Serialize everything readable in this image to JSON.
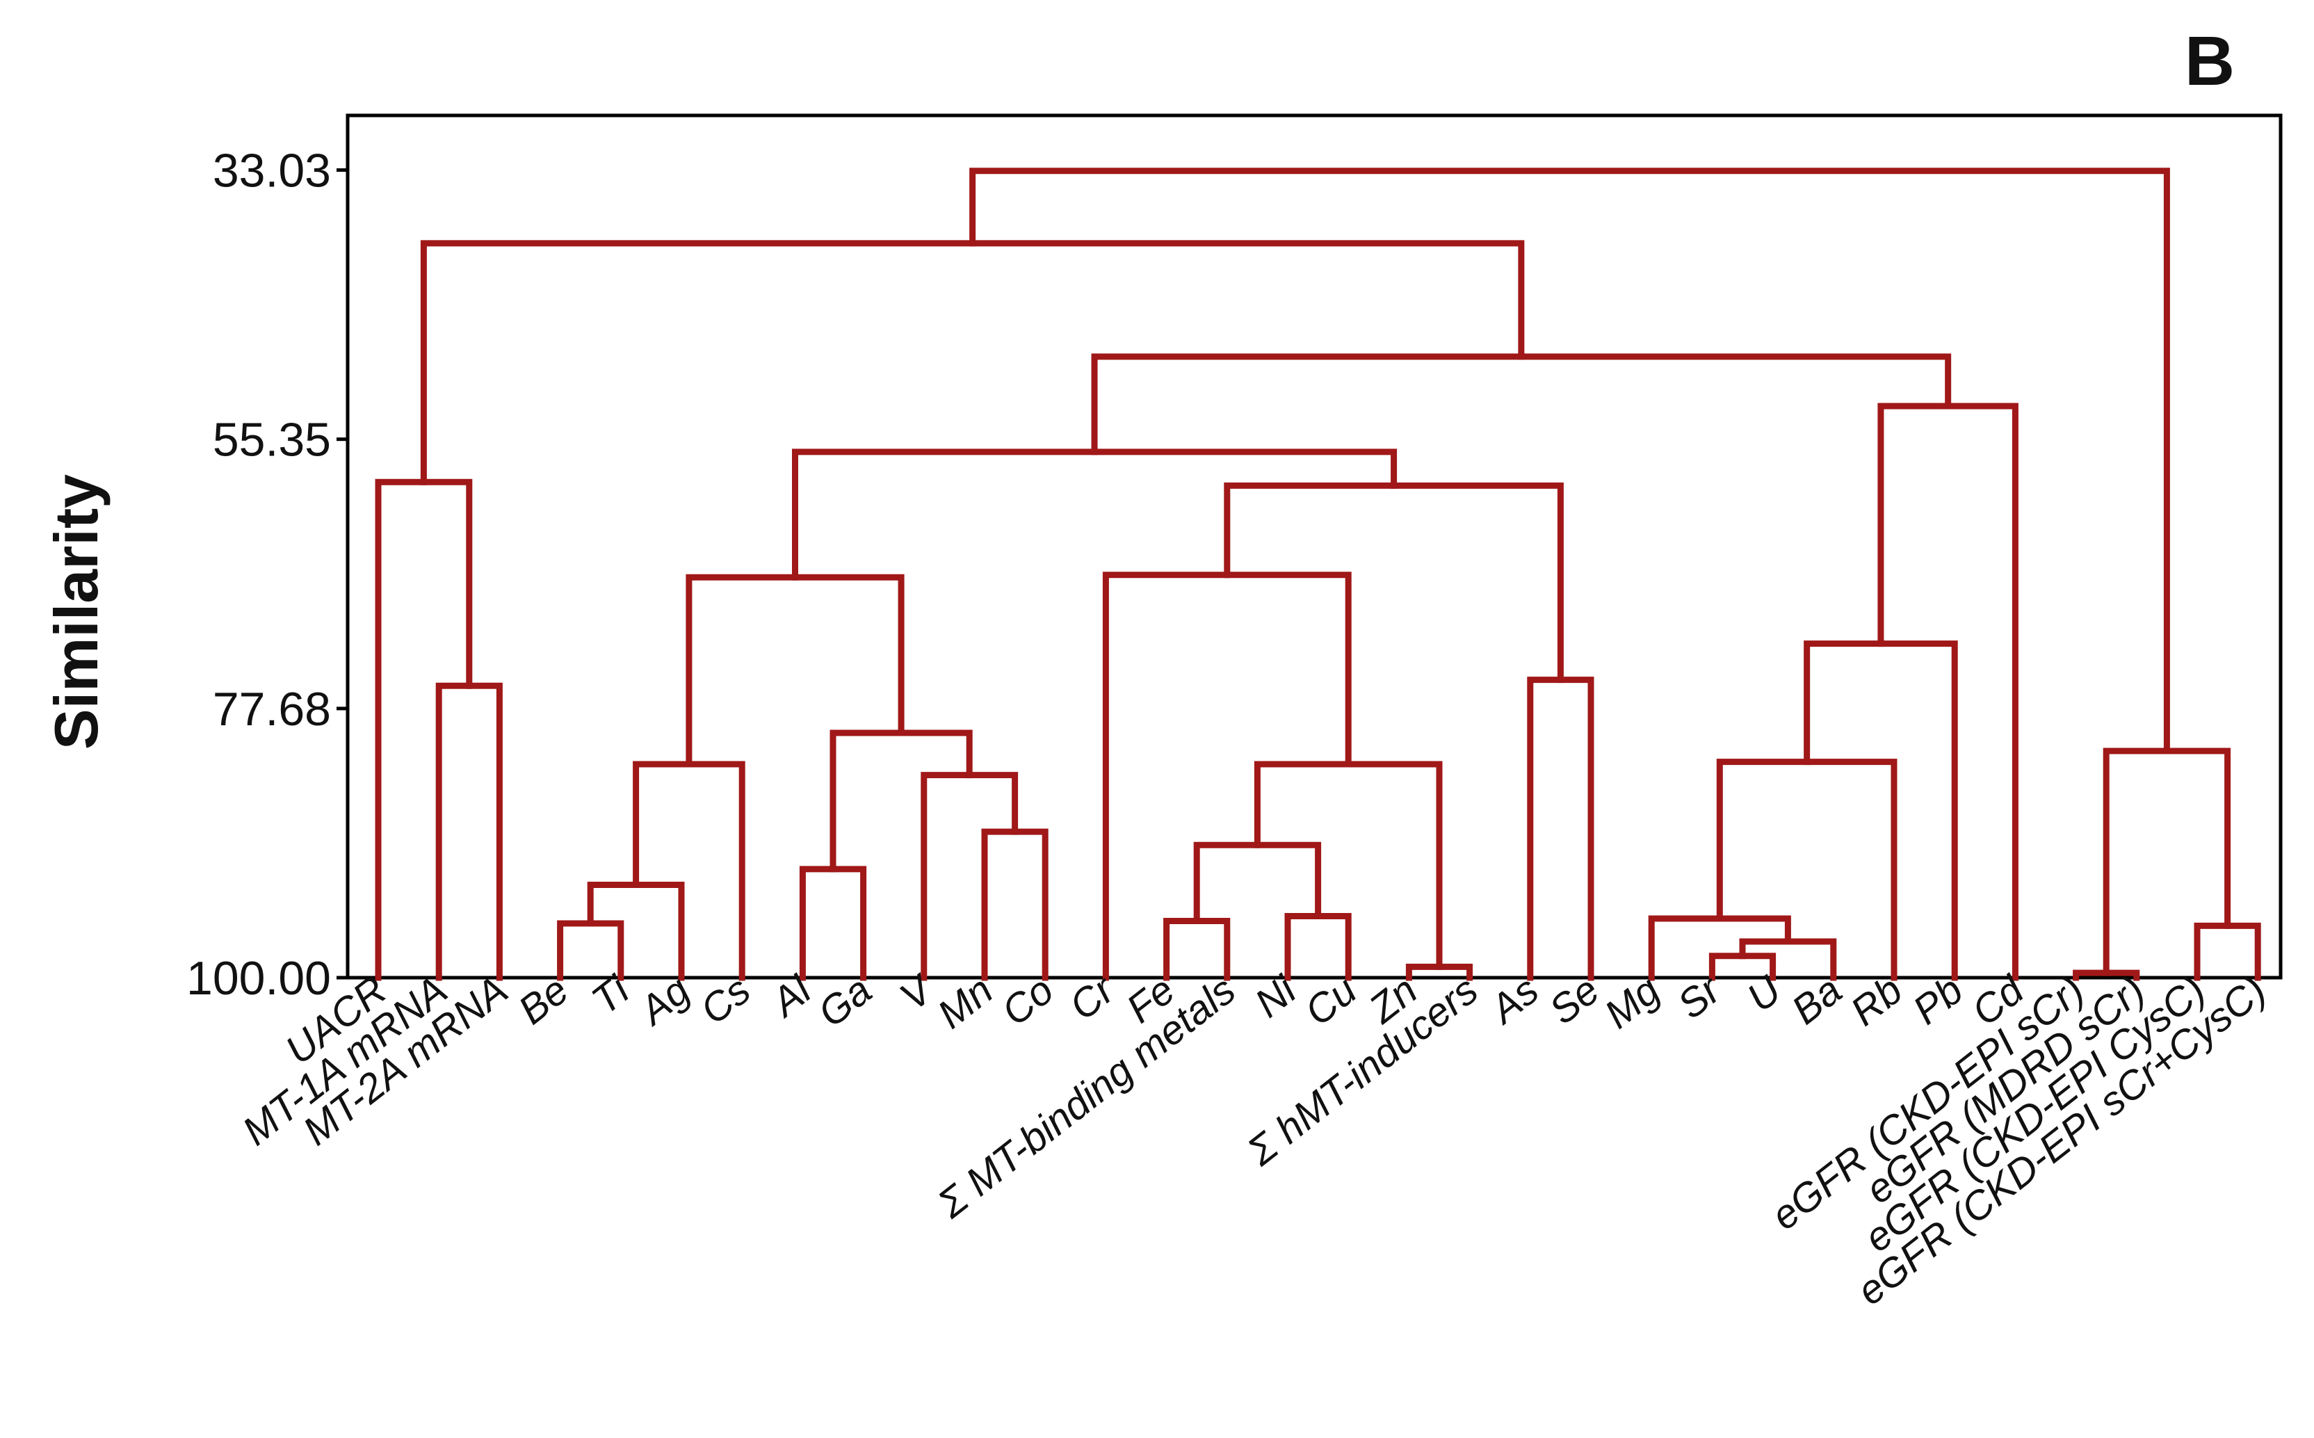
{
  "panel_label": "B",
  "chart_data": {
    "type": "dendrogram",
    "ylabel": "Similarity",
    "ylim": [
      28.5,
      100
    ],
    "yaxis_inverted": true,
    "yticks": [
      33.03,
      55.35,
      77.68,
      100.0
    ],
    "ytick_labels": [
      "33.03",
      "55.35",
      "77.68",
      "100.00"
    ],
    "link_color": "#a01818",
    "leaves": [
      "UACR",
      "MT-1A mRNA",
      "MT-2A mRNA",
      "Be",
      "Ti",
      "Ag",
      "Cs",
      "Al",
      "Ga",
      "V",
      "Mn",
      "Co",
      "Cr",
      "Fe",
      "Σ MT-binding metals",
      "Ni",
      "Cu",
      "Zn",
      "Σ hMT-inducers",
      "As",
      "Se",
      "Mg",
      "Sr",
      "U",
      "Ba",
      "Rb",
      "Pb",
      "Cd",
      "eGFR (CKD-EPI sCr)",
      "eGFR (MDRD sCr)",
      "eGFR (CKD-EPI CysC)",
      "eGFR (CKD-EPI sCr+CysC)"
    ],
    "merges": [
      {
        "id": "n1",
        "left": "L28",
        "right": "L29",
        "similarity": 99.6
      },
      {
        "id": "n2",
        "left": "L17",
        "right": "L18",
        "similarity": 99.1
      },
      {
        "id": "n3",
        "left": "L22",
        "right": "L23",
        "similarity": 98.2
      },
      {
        "id": "n4",
        "left": "n3",
        "right": "L24",
        "similarity": 97.0
      },
      {
        "id": "n5",
        "left": "L21",
        "right": "n4",
        "similarity": 95.1
      },
      {
        "id": "n6",
        "left": "L30",
        "right": "L31",
        "similarity": 95.7
      },
      {
        "id": "n7",
        "left": "L15",
        "right": "L16",
        "similarity": 94.9
      },
      {
        "id": "n8",
        "left": "L3",
        "right": "L4",
        "similarity": 95.5
      },
      {
        "id": "n9",
        "left": "L13",
        "right": "L14",
        "similarity": 95.3
      },
      {
        "id": "n10",
        "left": "n8",
        "right": "L5",
        "similarity": 92.3
      },
      {
        "id": "n11",
        "left": "L7",
        "right": "L8",
        "similarity": 91.0
      },
      {
        "id": "n12",
        "left": "n9",
        "right": "n7",
        "similarity": 89.0
      },
      {
        "id": "n13",
        "left": "L10",
        "right": "L11",
        "similarity": 87.9
      },
      {
        "id": "n14",
        "left": "L9",
        "right": "n13",
        "similarity": 83.2
      },
      {
        "id": "n15",
        "left": "n12",
        "right": "n2",
        "similarity": 82.3
      },
      {
        "id": "n16",
        "left": "n10",
        "right": "L6",
        "similarity": 82.3
      },
      {
        "id": "n17",
        "left": "n5",
        "right": "L25",
        "similarity": 82.1
      },
      {
        "id": "n18",
        "left": "n1",
        "right": "n6",
        "similarity": 81.2
      },
      {
        "id": "n19",
        "left": "n11",
        "right": "n14",
        "similarity": 79.7
      },
      {
        "id": "n20",
        "left": "L1",
        "right": "L2",
        "similarity": 75.8
      },
      {
        "id": "n21",
        "left": "L19",
        "right": "L20",
        "similarity": 75.3
      },
      {
        "id": "n22",
        "left": "n17",
        "right": "L26",
        "similarity": 72.3
      },
      {
        "id": "n23",
        "left": "n16",
        "right": "n19",
        "similarity": 66.8
      },
      {
        "id": "n24",
        "left": "L12",
        "right": "n15",
        "similarity": 66.6
      },
      {
        "id": "n25",
        "left": "n24",
        "right": "n21",
        "similarity": 59.2
      },
      {
        "id": "n26",
        "left": "L0",
        "right": "n20",
        "similarity": 58.9
      },
      {
        "id": "n27",
        "left": "n23",
        "right": "n25",
        "similarity": 56.4
      },
      {
        "id": "n28",
        "left": "n22",
        "right": "L27",
        "similarity": 52.6
      },
      {
        "id": "n29",
        "left": "n27",
        "right": "n28",
        "similarity": 48.5
      },
      {
        "id": "n30",
        "left": "n26",
        "right": "n29",
        "similarity": 39.1
      },
      {
        "id": "n31",
        "left": "n30",
        "right": "n18",
        "similarity": 33.1
      }
    ]
  }
}
